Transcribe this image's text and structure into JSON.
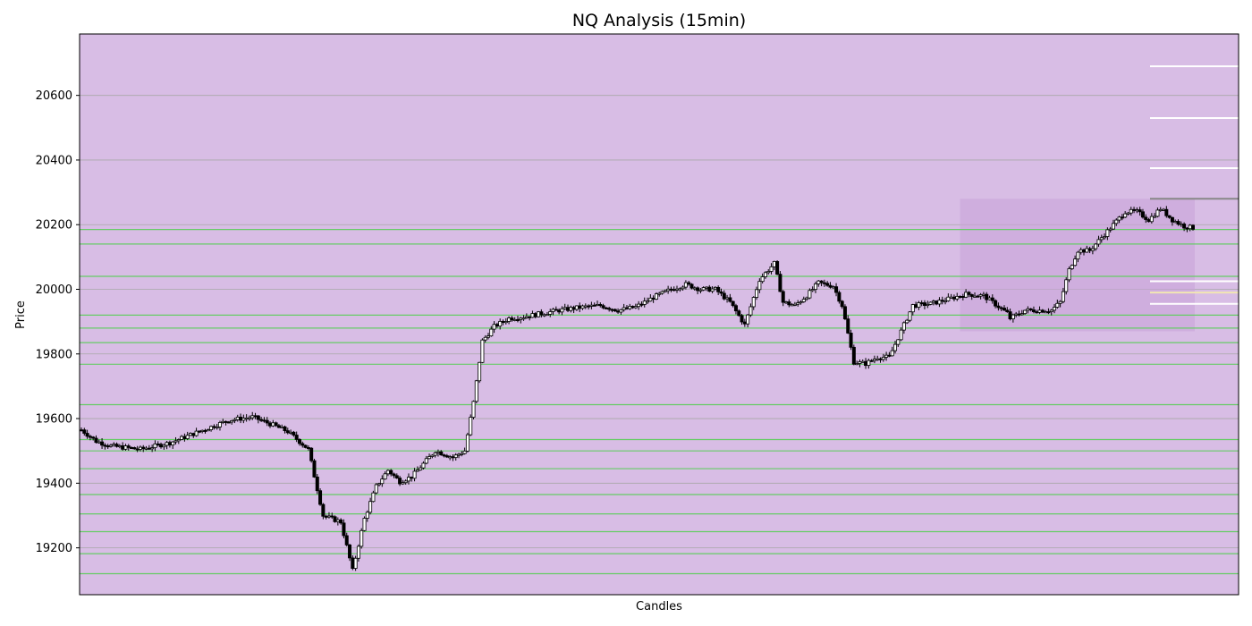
{
  "chart_data": {
    "type": "candlestick",
    "title": "NQ Analysis (15min)",
    "xlabel": "Candles",
    "ylabel": "Price",
    "ylim": [
      19055,
      20790
    ],
    "yticks": [
      19200,
      19400,
      19600,
      19800,
      20000,
      20200,
      20400,
      20600
    ],
    "x_tick_labels": "none",
    "grid": "horizontal",
    "background_color": "#d8bde5",
    "candle_color": "#000000",
    "candle_count": 315,
    "anchors": [
      {
        "i": 0,
        "p": 19565
      },
      {
        "i": 5,
        "p": 19530
      },
      {
        "i": 10,
        "p": 19515
      },
      {
        "i": 20,
        "p": 19505
      },
      {
        "i": 30,
        "p": 19525
      },
      {
        "i": 40,
        "p": 19560
      },
      {
        "i": 50,
        "p": 19595
      },
      {
        "i": 58,
        "p": 19605
      },
      {
        "i": 65,
        "p": 19580
      },
      {
        "i": 70,
        "p": 19560
      },
      {
        "i": 77,
        "p": 19505
      },
      {
        "i": 82,
        "p": 19300
      },
      {
        "i": 88,
        "p": 19280
      },
      {
        "i": 92,
        "p": 19130
      },
      {
        "i": 96,
        "p": 19290
      },
      {
        "i": 100,
        "p": 19390
      },
      {
        "i": 104,
        "p": 19440
      },
      {
        "i": 108,
        "p": 19405
      },
      {
        "i": 112,
        "p": 19420
      },
      {
        "i": 116,
        "p": 19460
      },
      {
        "i": 120,
        "p": 19500
      },
      {
        "i": 126,
        "p": 19480
      },
      {
        "i": 130,
        "p": 19500
      },
      {
        "i": 133,
        "p": 19650
      },
      {
        "i": 136,
        "p": 19840
      },
      {
        "i": 140,
        "p": 19885
      },
      {
        "i": 145,
        "p": 19910
      },
      {
        "i": 150,
        "p": 19915
      },
      {
        "i": 156,
        "p": 19925
      },
      {
        "i": 162,
        "p": 19935
      },
      {
        "i": 170,
        "p": 19945
      },
      {
        "i": 176,
        "p": 19950
      },
      {
        "i": 182,
        "p": 19935
      },
      {
        "i": 188,
        "p": 19945
      },
      {
        "i": 194,
        "p": 19975
      },
      {
        "i": 200,
        "p": 20000
      },
      {
        "i": 205,
        "p": 20015
      },
      {
        "i": 210,
        "p": 20000
      },
      {
        "i": 215,
        "p": 20000
      },
      {
        "i": 220,
        "p": 19960
      },
      {
        "i": 225,
        "p": 19890
      },
      {
        "i": 230,
        "p": 20030
      },
      {
        "i": 235,
        "p": 20080
      },
      {
        "i": 238,
        "p": 19960
      },
      {
        "i": 242,
        "p": 19950
      },
      {
        "i": 246,
        "p": 19980
      },
      {
        "i": 250,
        "p": 20020
      },
      {
        "i": 255,
        "p": 20010
      },
      {
        "i": 258,
        "p": 19950
      },
      {
        "i": 262,
        "p": 19775
      },
      {
        "i": 266,
        "p": 19770
      },
      {
        "i": 270,
        "p": 19790
      },
      {
        "i": 274,
        "p": 19790
      },
      {
        "i": 277,
        "p": 19850
      },
      {
        "i": 282,
        "p": 19950
      },
      {
        "i": 288,
        "p": 19955
      },
      {
        "i": 294,
        "p": 19970
      },
      {
        "i": 300,
        "p": 19985
      },
      {
        "i": 306,
        "p": 19980
      },
      {
        "i": 312,
        "p": 19940
      },
      {
        "i": 315,
        "p": 19920
      }
    ],
    "anchors_second_leg": [
      {
        "i": 0,
        "p": 19905
      },
      {
        "i": 6,
        "p": 19935
      },
      {
        "i": 12,
        "p": 19935
      },
      {
        "i": 15,
        "p": 19935
      },
      {
        "i": 18,
        "p": 19960
      },
      {
        "i": 21,
        "p": 20060
      },
      {
        "i": 24,
        "p": 20120
      },
      {
        "i": 28,
        "p": 20120
      },
      {
        "i": 32,
        "p": 20160
      },
      {
        "i": 36,
        "p": 20200
      },
      {
        "i": 40,
        "p": 20240
      },
      {
        "i": 44,
        "p": 20240
      },
      {
        "i": 48,
        "p": 20215
      },
      {
        "i": 52,
        "p": 20250
      },
      {
        "i": 56,
        "p": 20215
      },
      {
        "i": 60,
        "p": 20195
      },
      {
        "i": 63,
        "p": 20190
      }
    ],
    "horizontal_levels": [
      {
        "price": 20185,
        "color": "#66cc66"
      },
      {
        "price": 20140,
        "color": "#66cc66"
      },
      {
        "price": 20040,
        "color": "#66cc66"
      },
      {
        "price": 19920,
        "color": "#66cc66"
      },
      {
        "price": 19880,
        "color": "#66cc66"
      },
      {
        "price": 19835,
        "color": "#66cc66"
      },
      {
        "price": 19768,
        "color": "#66cc66"
      },
      {
        "price": 19643,
        "color": "#66cc66"
      },
      {
        "price": 19535,
        "color": "#66cc66"
      },
      {
        "price": 19500,
        "color": "#66cc66"
      },
      {
        "price": 19445,
        "color": "#66cc66"
      },
      {
        "price": 19365,
        "color": "#66cc66"
      },
      {
        "price": 19305,
        "color": "#66cc66"
      },
      {
        "price": 19250,
        "color": "#66cc66"
      },
      {
        "price": 19182,
        "color": "#66cc66"
      },
      {
        "price": 19120,
        "color": "#66cc66"
      }
    ],
    "right_side_levels": [
      {
        "price": 20690,
        "color": "#ffffff"
      },
      {
        "price": 20530,
        "color": "#ffffff"
      },
      {
        "price": 20375,
        "color": "#ffffff"
      },
      {
        "price": 20280,
        "color": "#888888"
      },
      {
        "price": 20025,
        "color": "#ffffff"
      },
      {
        "price": 19990,
        "color": "#f2e6b3"
      },
      {
        "price": 19955,
        "color": "#ffffff"
      }
    ],
    "highlight_zone": {
      "price_low": 19870,
      "price_high": 20280,
      "color": "#c9a3d9"
    }
  }
}
